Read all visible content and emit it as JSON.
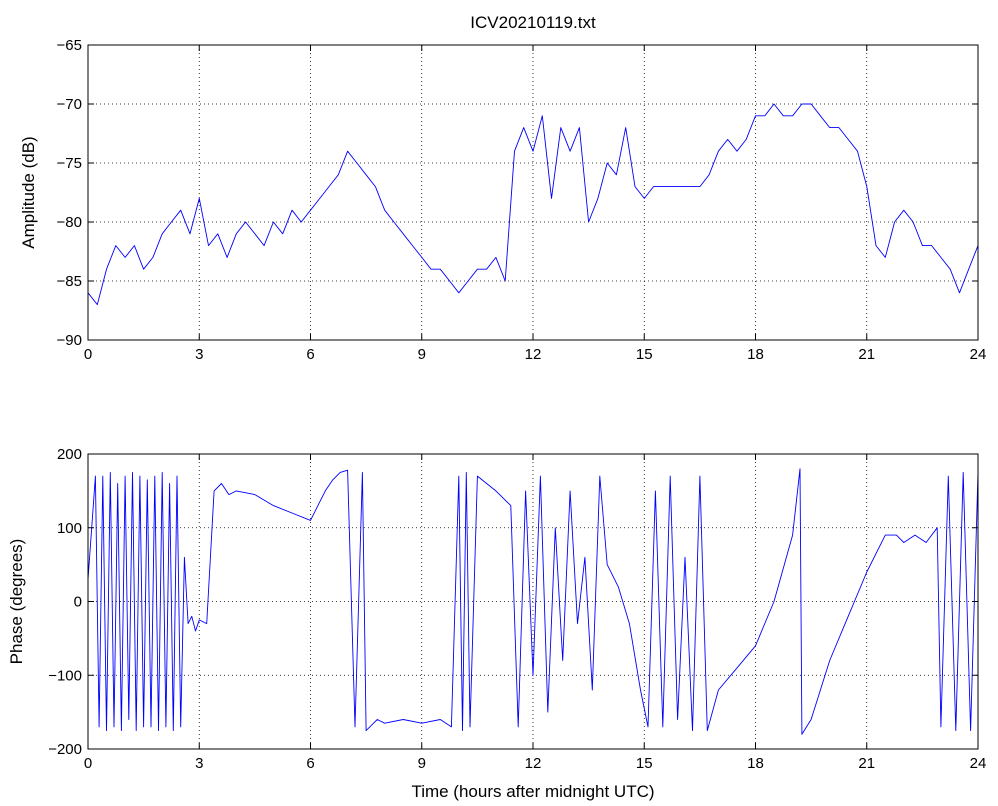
{
  "chart_data": [
    {
      "type": "line",
      "title": "ICV20210119.txt",
      "xlabel": "",
      "ylabel": "Amplitude (dB)",
      "xlim": [
        0,
        24
      ],
      "ylim": [
        -90,
        -65
      ],
      "xticks": [
        "0",
        "3",
        "6",
        "9",
        "12",
        "15",
        "18",
        "21",
        "24"
      ],
      "yticks": [
        "−90",
        "−85",
        "−80",
        "−75",
        "−70",
        "−65"
      ],
      "grid": true,
      "series": [
        {
          "color": "#0000ff",
          "x": [
            0,
            0.25,
            0.5,
            0.75,
            1,
            1.25,
            1.5,
            1.75,
            2,
            2.25,
            2.5,
            2.75,
            3,
            3.25,
            3.5,
            3.75,
            4,
            4.25,
            4.5,
            4.75,
            5,
            5.25,
            5.5,
            5.75,
            6,
            6.25,
            6.5,
            6.75,
            7,
            7.25,
            7.5,
            7.75,
            8,
            8.25,
            8.5,
            8.75,
            9,
            9.25,
            9.5,
            9.75,
            10,
            10.25,
            10.5,
            10.75,
            11,
            11.25,
            11.5,
            11.75,
            12,
            12.25,
            12.5,
            12.75,
            13,
            13.25,
            13.5,
            13.75,
            14,
            14.25,
            14.5,
            14.75,
            15,
            15.25,
            15.5,
            15.75,
            16,
            16.25,
            16.5,
            16.75,
            17,
            17.25,
            17.5,
            17.75,
            18,
            18.25,
            18.5,
            18.75,
            19,
            19.25,
            19.5,
            19.75,
            20,
            20.25,
            20.5,
            20.75,
            21,
            21.25,
            21.5,
            21.75,
            22,
            22.25,
            22.5,
            22.75,
            23,
            23.25,
            23.5,
            23.75,
            24
          ],
          "values": [
            -86,
            -87,
            -84,
            -82,
            -83,
            -82,
            -84,
            -83,
            -81,
            -80,
            -79,
            -81,
            -78,
            -82,
            -81,
            -83,
            -81,
            -80,
            -81,
            -82,
            -80,
            -81,
            -79,
            -80,
            -79,
            -78,
            -77,
            -76,
            -74,
            -75,
            -76,
            -77,
            -79,
            -80,
            -81,
            -82,
            -83,
            -84,
            -84,
            -85,
            -86,
            -85,
            -84,
            -84,
            -83,
            -85,
            -74,
            -72,
            -74,
            -71,
            -78,
            -72,
            -74,
            -72,
            -80,
            -78,
            -75,
            -76,
            -72,
            -77,
            -78,
            -77,
            -77,
            -77,
            -77,
            -77,
            -77,
            -76,
            -74,
            -73,
            -74,
            -73,
            -71,
            -71,
            -70,
            -71,
            -71,
            -70,
            -70,
            -71,
            -72,
            -72,
            -73,
            -74,
            -77,
            -82,
            -83,
            -80,
            -79,
            -80,
            -82,
            -82,
            -83,
            -84,
            -86,
            -84,
            -82
          ]
        }
      ]
    },
    {
      "type": "line",
      "title": "",
      "xlabel": "Time (hours after midnight UTC)",
      "ylabel": "Phase (degrees)",
      "xlim": [
        0,
        24
      ],
      "ylim": [
        -200,
        200
      ],
      "xticks": [
        "0",
        "3",
        "6",
        "9",
        "12",
        "15",
        "18",
        "21",
        "24"
      ],
      "yticks": [
        "−200",
        "−100",
        "0",
        "100",
        "200"
      ],
      "grid": true,
      "series": [
        {
          "color": "#0000ff",
          "x": [
            0,
            0.1,
            0.2,
            0.3,
            0.4,
            0.5,
            0.6,
            0.7,
            0.8,
            0.9,
            1.0,
            1.1,
            1.2,
            1.3,
            1.4,
            1.5,
            1.6,
            1.7,
            1.8,
            1.9,
            2.0,
            2.1,
            2.2,
            2.3,
            2.4,
            2.5,
            2.6,
            2.7,
            2.8,
            2.9,
            3.0,
            3.2,
            3.4,
            3.6,
            3.8,
            4.0,
            4.5,
            5.0,
            5.5,
            6.0,
            6.2,
            6.4,
            6.6,
            6.8,
            7.0,
            7.2,
            7.4,
            7.5,
            7.6,
            7.7,
            7.8,
            8.0,
            8.5,
            9.0,
            9.5,
            9.8,
            10.0,
            10.1,
            10.2,
            10.3,
            10.5,
            11.0,
            11.4,
            11.6,
            11.8,
            12.0,
            12.2,
            12.4,
            12.6,
            12.8,
            13.0,
            13.2,
            13.4,
            13.6,
            13.8,
            14.0,
            14.3,
            14.6,
            14.9,
            15.1,
            15.3,
            15.5,
            15.7,
            15.9,
            16.1,
            16.3,
            16.5,
            16.7,
            17.0,
            17.5,
            18.0,
            18.5,
            19.0,
            19.2,
            19.25,
            19.5,
            20.0,
            20.5,
            21.0,
            21.5,
            21.8,
            22.0,
            22.3,
            22.6,
            22.9,
            23.0,
            23.2,
            23.4,
            23.6,
            23.8,
            24.0
          ],
          "values": [
            30,
            100,
            170,
            -170,
            170,
            -175,
            175,
            -170,
            160,
            -175,
            170,
            -160,
            175,
            -175,
            170,
            -170,
            165,
            -170,
            170,
            -175,
            175,
            -170,
            160,
            -175,
            170,
            -170,
            60,
            -30,
            -20,
            -40,
            -25,
            -30,
            150,
            160,
            145,
            150,
            145,
            130,
            120,
            110,
            130,
            150,
            165,
            175,
            178,
            -170,
            175,
            -175,
            -170,
            -165,
            -160,
            -165,
            -160,
            -165,
            -160,
            -170,
            170,
            -175,
            175,
            -170,
            170,
            150,
            130,
            -170,
            150,
            -100,
            170,
            -150,
            100,
            -80,
            150,
            -30,
            60,
            -120,
            170,
            50,
            20,
            -30,
            -120,
            -170,
            150,
            -170,
            170,
            -160,
            60,
            -175,
            170,
            -175,
            -120,
            -90,
            -60,
            0,
            90,
            180,
            -180,
            -160,
            -80,
            -20,
            40,
            90,
            90,
            80,
            90,
            80,
            100,
            -170,
            170,
            -175,
            175,
            -175,
            175
          ]
        }
      ]
    }
  ]
}
